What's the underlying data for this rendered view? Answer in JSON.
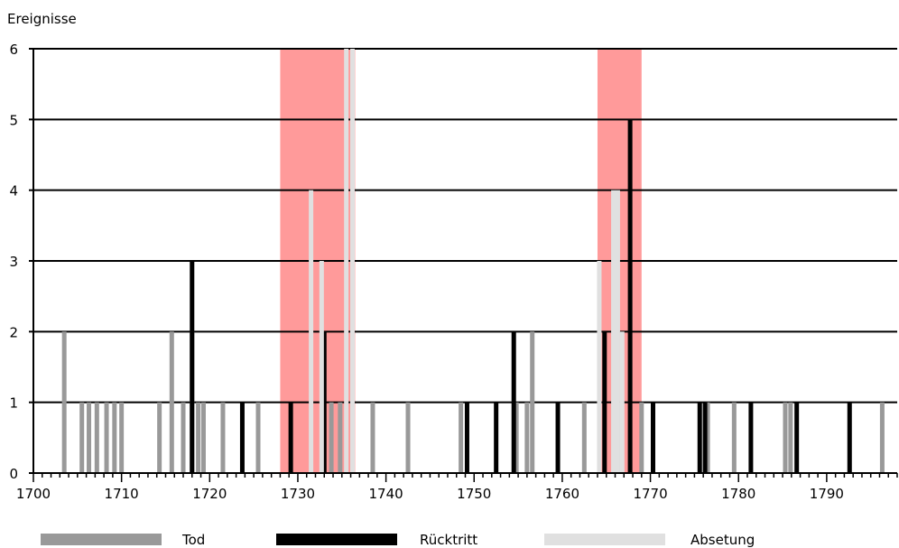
{
  "chart_data": {
    "type": "bar",
    "ylabel": "Ereignisse",
    "xlabel": "",
    "xlim": [
      1700,
      1798
    ],
    "ylim": [
      0,
      6
    ],
    "yticks": [
      0,
      1,
      2,
      3,
      4,
      5,
      6
    ],
    "xticks": [
      1700,
      1710,
      1720,
      1730,
      1740,
      1750,
      1760,
      1770,
      1780,
      1790
    ],
    "grid": true,
    "legend_position": "bottom",
    "highlight_periods": [
      {
        "from": 1728,
        "to": 1736.5,
        "color": "#ff9a9a"
      },
      {
        "from": 1764,
        "to": 1769,
        "color": "#ff9a9a"
      }
    ],
    "series": [
      {
        "name": "Tod",
        "color": "#999999",
        "points": [
          {
            "x": 1703.5,
            "y": 2
          },
          {
            "x": 1705.5,
            "y": 1
          },
          {
            "x": 1706.3,
            "y": 1
          },
          {
            "x": 1707.2,
            "y": 1
          },
          {
            "x": 1708.3,
            "y": 1
          },
          {
            "x": 1709.2,
            "y": 1
          },
          {
            "x": 1710,
            "y": 1
          },
          {
            "x": 1714.3,
            "y": 1
          },
          {
            "x": 1715.7,
            "y": 2
          },
          {
            "x": 1717,
            "y": 1
          },
          {
            "x": 1718,
            "y": 2
          },
          {
            "x": 1718.7,
            "y": 1
          },
          {
            "x": 1719.3,
            "y": 1
          },
          {
            "x": 1721.5,
            "y": 1
          },
          {
            "x": 1725.5,
            "y": 1
          },
          {
            "x": 1733.8,
            "y": 1
          },
          {
            "x": 1734.8,
            "y": 1
          },
          {
            "x": 1738.5,
            "y": 1
          },
          {
            "x": 1742.5,
            "y": 1
          },
          {
            "x": 1748.5,
            "y": 1
          },
          {
            "x": 1754.8,
            "y": 1
          },
          {
            "x": 1756,
            "y": 1
          },
          {
            "x": 1756.6,
            "y": 2
          },
          {
            "x": 1762.5,
            "y": 1
          },
          {
            "x": 1766.5,
            "y": 1
          },
          {
            "x": 1769,
            "y": 1
          },
          {
            "x": 1776.5,
            "y": 1
          },
          {
            "x": 1779.5,
            "y": 1
          },
          {
            "x": 1785.3,
            "y": 1
          },
          {
            "x": 1785.9,
            "y": 1
          },
          {
            "x": 1796.3,
            "y": 1
          }
        ]
      },
      {
        "name": "Rücktritt",
        "color": "#000000",
        "points": [
          {
            "x": 1718,
            "y": 3
          },
          {
            "x": 1723.7,
            "y": 1
          },
          {
            "x": 1729.2,
            "y": 1
          },
          {
            "x": 1733,
            "y": 2
          },
          {
            "x": 1749.2,
            "y": 1
          },
          {
            "x": 1752.5,
            "y": 1
          },
          {
            "x": 1754.5,
            "y": 2
          },
          {
            "x": 1759.5,
            "y": 1
          },
          {
            "x": 1764.8,
            "y": 2
          },
          {
            "x": 1767.7,
            "y": 5
          },
          {
            "x": 1770.3,
            "y": 1
          },
          {
            "x": 1775.6,
            "y": 1
          },
          {
            "x": 1776.2,
            "y": 1
          },
          {
            "x": 1781.4,
            "y": 1
          },
          {
            "x": 1786.6,
            "y": 1
          },
          {
            "x": 1792.6,
            "y": 1
          }
        ]
      },
      {
        "name": "Absetung",
        "color": "#e0e0e0",
        "points": [
          {
            "x": 1731.5,
            "y": 4
          },
          {
            "x": 1732.7,
            "y": 3
          },
          {
            "x": 1735.5,
            "y": 6
          },
          {
            "x": 1736.2,
            "y": 6
          },
          {
            "x": 1764.2,
            "y": 3
          },
          {
            "x": 1765.8,
            "y": 4
          },
          {
            "x": 1766.3,
            "y": 4
          },
          {
            "x": 1766.8,
            "y": 2
          }
        ]
      }
    ]
  }
}
